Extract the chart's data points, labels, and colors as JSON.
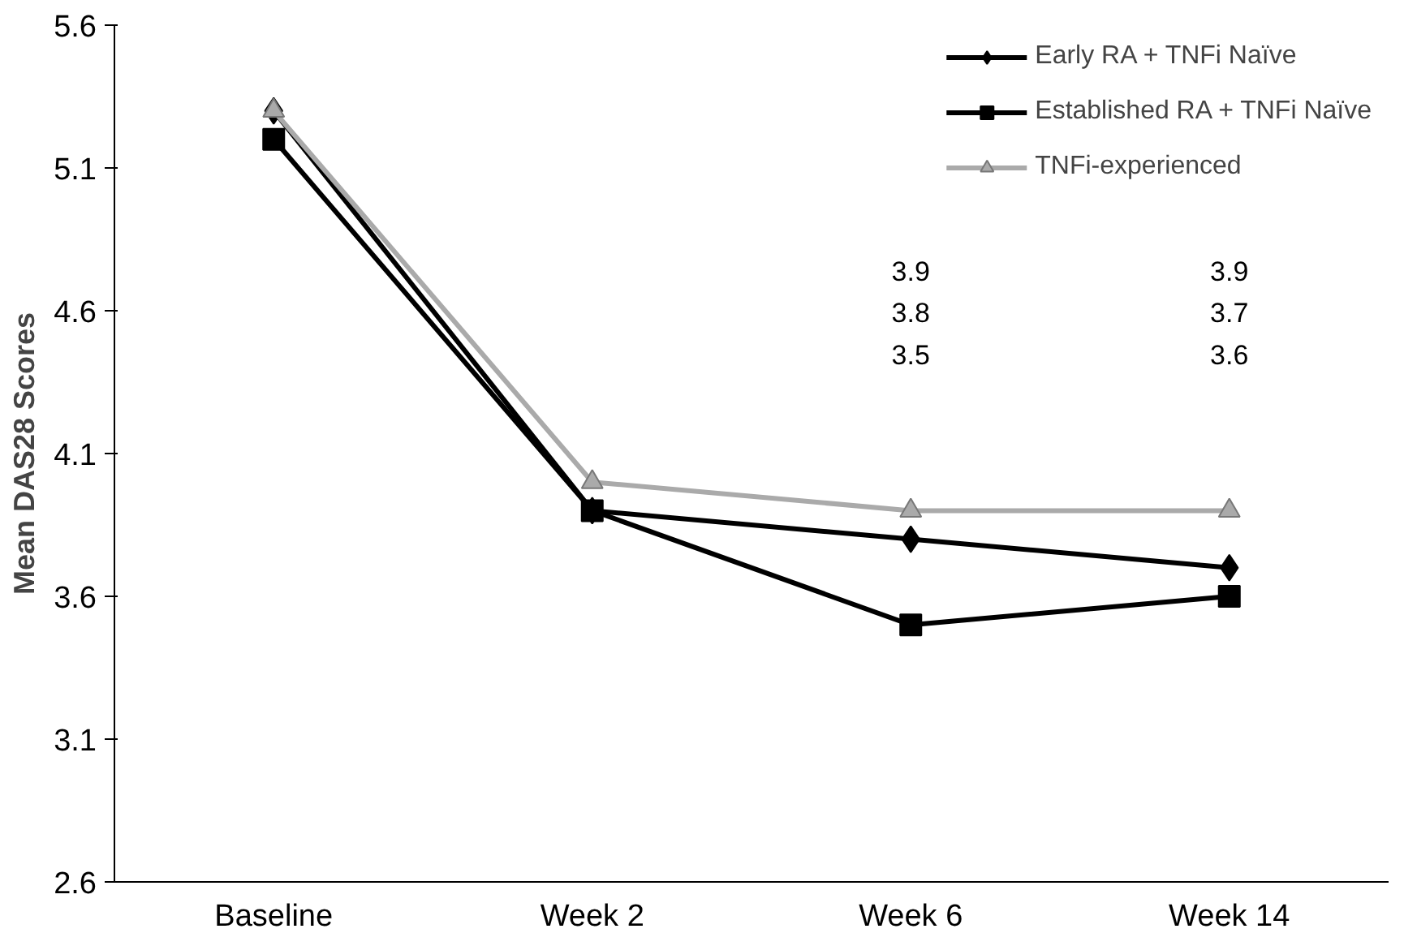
{
  "chart_data": {
    "type": "line",
    "ylabel": "Mean DAS28 Scores",
    "categories": [
      "Baseline",
      "Week 2",
      "Week 6",
      "Week 14"
    ],
    "series": [
      {
        "name": "Early RA + TNFi Naïve",
        "color": "#000000",
        "marker": "diamond",
        "values": [
          5.3,
          3.9,
          3.8,
          3.7
        ]
      },
      {
        "name": "Established RA + TNFi Naïve",
        "color": "#000000",
        "marker": "square",
        "values": [
          5.2,
          3.9,
          3.5,
          3.6
        ]
      },
      {
        "name": "TNFi-experienced",
        "color": "#aaaaaa",
        "marker": "triangle",
        "values": [
          5.3,
          4.0,
          3.9,
          3.9
        ]
      }
    ],
    "ylim": [
      2.6,
      5.6
    ],
    "yticks": [
      2.6,
      3.1,
      3.6,
      4.1,
      4.6,
      5.1,
      5.6
    ],
    "grid": false,
    "legend": "top right",
    "line_style": "solid",
    "annotations": [
      "3.9\n3.8\n3.5",
      "3.9\n3.7\n3.6"
    ]
  }
}
